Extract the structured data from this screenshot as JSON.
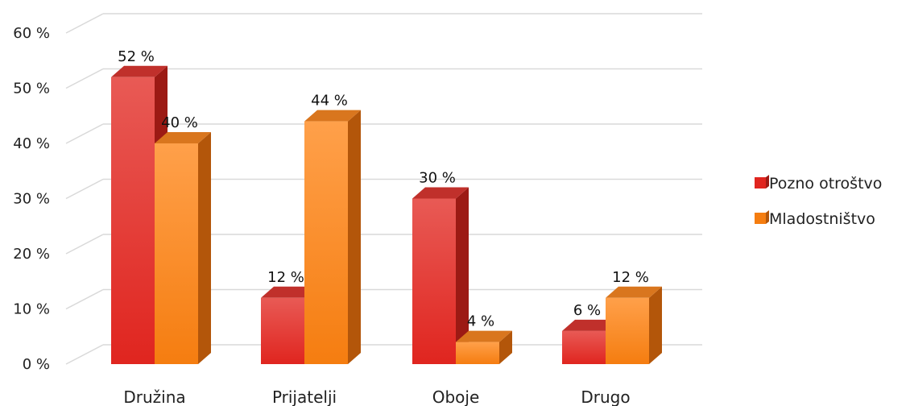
{
  "chart_data": {
    "type": "bar",
    "categories": [
      "Družina",
      "Prijatelji",
      "Oboje",
      "Drugo"
    ],
    "series": [
      {
        "name": "Pozno otroštvo",
        "values": [
          52,
          12,
          30,
          6
        ],
        "labels": [
          "52 %",
          "12 %",
          "30 %",
          "6 %"
        ]
      },
      {
        "name": "Mladostništvo",
        "values": [
          40,
          44,
          4,
          12
        ],
        "labels": [
          "40 %",
          "44 %",
          "4 %",
          "12 %"
        ]
      }
    ],
    "yticks": [
      0,
      10,
      20,
      30,
      40,
      50,
      60
    ],
    "ytick_labels": [
      "0 %",
      "10 %",
      "20 %",
      "30 %",
      "40 %",
      "50 %",
      "60 %"
    ],
    "ylim": [
      0,
      60
    ],
    "title": "",
    "xlabel": "",
    "ylabel": "",
    "grid": true,
    "legend_position": "right",
    "style": "3d-bar",
    "colors": {
      "series": [
        {
          "front_top": "#e85a55",
          "front_bottom": "#e0251f",
          "side": "#9c1a14",
          "top": "#c0302b"
        },
        {
          "front_top": "#ffa04a",
          "front_bottom": "#f57d10",
          "side": "#b3560a",
          "top": "#d9761e"
        }
      ],
      "gridline": "#d9d9d9"
    }
  }
}
